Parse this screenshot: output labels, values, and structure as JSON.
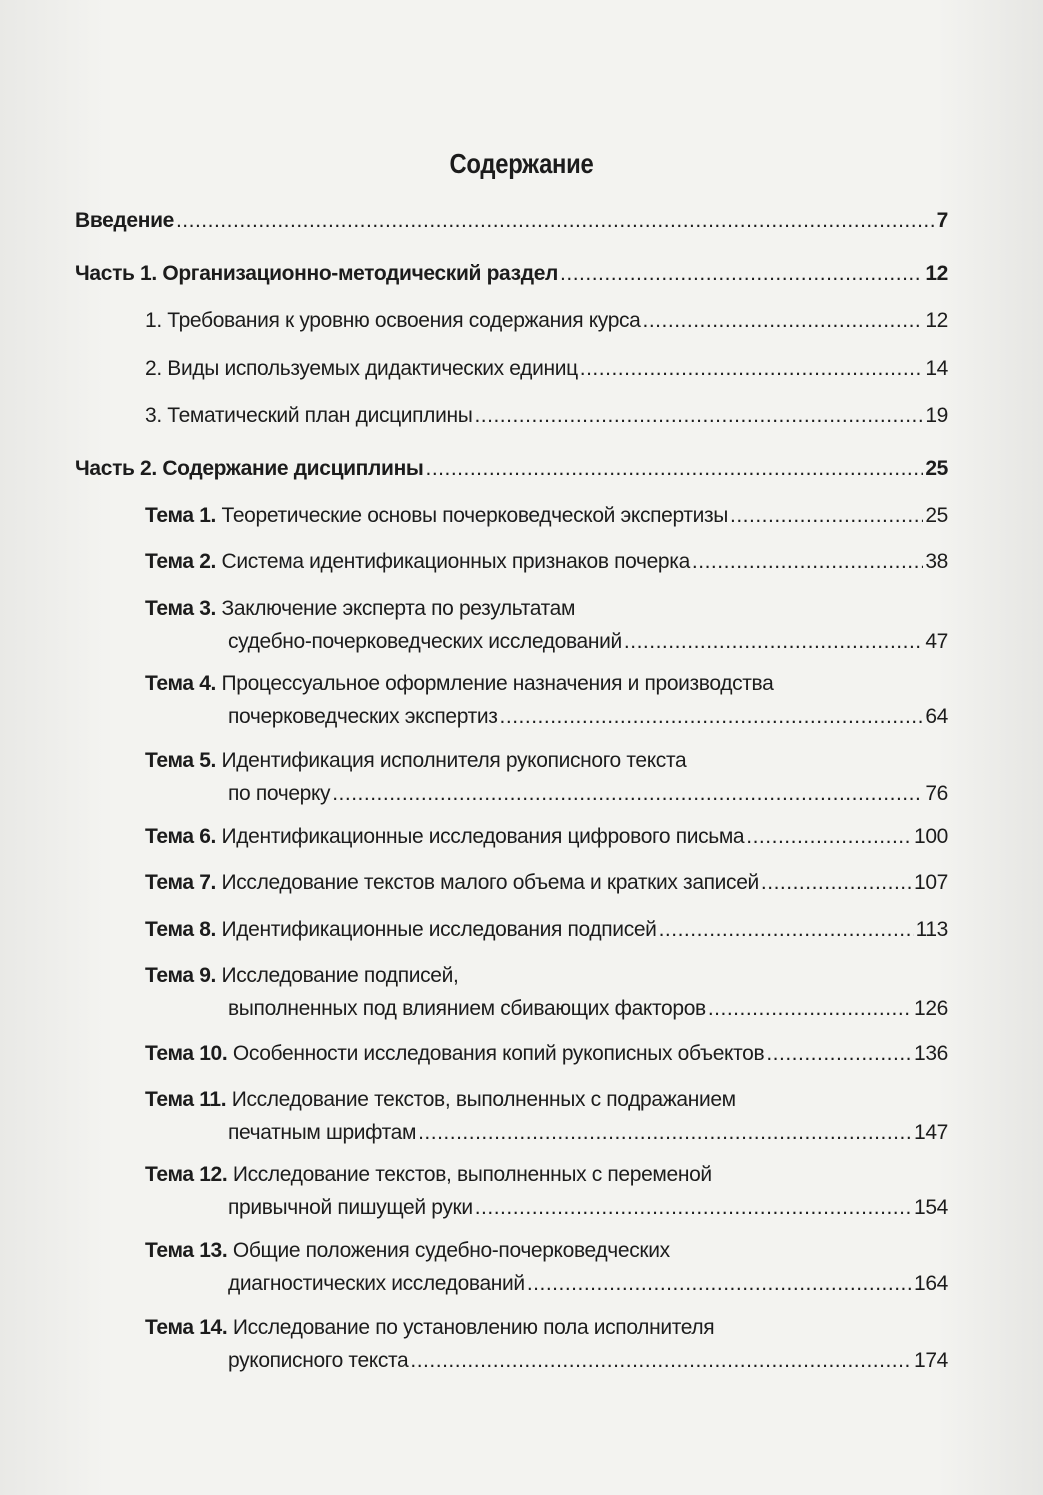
{
  "title": "Содержание",
  "entries": [
    {
      "kind": "head",
      "label": "Введение",
      "page": "7"
    },
    {
      "kind": "head",
      "label": "Часть 1. Организационно-методический раздел",
      "page": "12"
    },
    {
      "kind": "item",
      "label": "1. Требования к уровню освоения содержания курса",
      "page": "12"
    },
    {
      "kind": "item",
      "label": "2. Виды используемых дидактических единиц",
      "page": "14"
    },
    {
      "kind": "item",
      "label": "3. Тематический план дисциплины",
      "page": "19"
    },
    {
      "kind": "head",
      "label": "Часть 2. Содержание дисциплины",
      "page": "25"
    },
    {
      "kind": "tema",
      "prefix": "Тема 1.",
      "lines": [
        "Теоретические основы почерковедческой экспертизы"
      ],
      "page": "25"
    },
    {
      "kind": "tema",
      "prefix": "Тема 2.",
      "lines": [
        "Система идентификационных признаков почерка"
      ],
      "page": "38"
    },
    {
      "kind": "tema",
      "prefix": "Тема 3.",
      "lines": [
        "Заключение эксперта по результатам",
        "судебно-почерковедческих исследований"
      ],
      "page": "47"
    },
    {
      "kind": "tema",
      "prefix": "Тема 4.",
      "lines": [
        "Процессуальное оформление назначения и производства",
        "почерковедческих экспертиз"
      ],
      "page": "64"
    },
    {
      "kind": "tema",
      "prefix": "Тема 5.",
      "lines": [
        "Идентификация исполнителя рукописного текста",
        "по почерку"
      ],
      "page": "76"
    },
    {
      "kind": "tema",
      "prefix": "Тема 6.",
      "lines": [
        "Идентификационные исследования цифрового письма"
      ],
      "page": "100"
    },
    {
      "kind": "tema",
      "prefix": "Тема 7.",
      "lines": [
        "Исследование текстов малого объема и кратких записей"
      ],
      "page": "107"
    },
    {
      "kind": "tema",
      "prefix": "Тема 8.",
      "lines": [
        "Идентификационные исследования подписей"
      ],
      "page": "113"
    },
    {
      "kind": "tema",
      "prefix": "Тема 9.",
      "lines": [
        "Исследование подписей,",
        "выполненных под влиянием сбивающих факторов"
      ],
      "page": "126"
    },
    {
      "kind": "tema",
      "prefix": "Тема 10.",
      "lines": [
        "Особенности исследования копий рукописных объектов"
      ],
      "page": "136"
    },
    {
      "kind": "tema",
      "prefix": "Тема 11.",
      "lines": [
        "Исследование текстов, выполненных с подражанием",
        "печатным шрифтам"
      ],
      "page": "147"
    },
    {
      "kind": "tema",
      "prefix": "Тема 12.",
      "lines": [
        "Исследование текстов, выполненных с переменой",
        "привычной пишущей руки"
      ],
      "page": "154"
    },
    {
      "kind": "tema",
      "prefix": "Тема 13.",
      "lines": [
        "Общие положения судебно-почерковедческих",
        "диагностических исследований"
      ],
      "page": "164"
    },
    {
      "kind": "tema",
      "prefix": "Тема 14.",
      "lines": [
        "Исследование по установлению пола исполнителя",
        "рукописного текста"
      ],
      "page": "174"
    }
  ]
}
